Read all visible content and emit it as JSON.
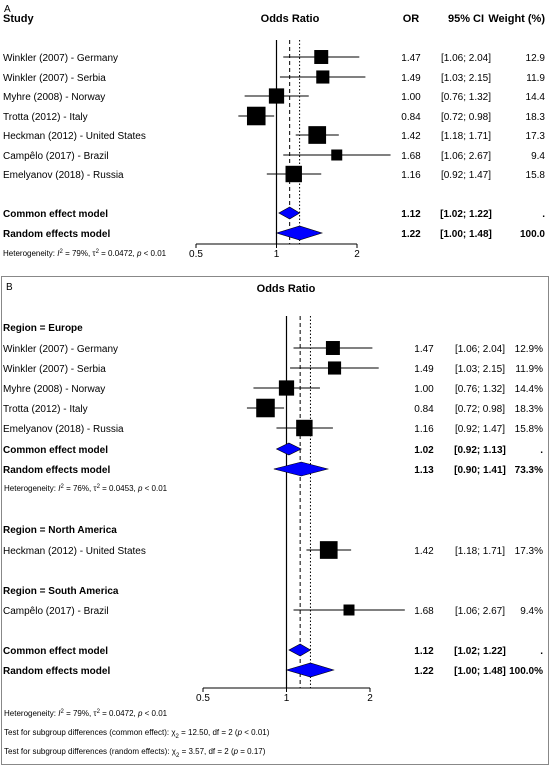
{
  "chart_data": [
    {
      "type": "forest",
      "panel_label": "A",
      "header": {
        "study": "Study",
        "plot": "Odds Ratio",
        "or": "OR",
        "ci": "95% CI",
        "weight": "Weight (%)"
      },
      "x_scale": "log",
      "x_ticks": [
        "0.5",
        "1",
        "2"
      ],
      "x_tick_values": [
        0.5,
        1,
        2
      ],
      "studies": [
        {
          "label": "Winkler (2007) - Germany",
          "or": 1.47,
          "lo": 1.06,
          "hi": 2.04,
          "or_text": "1.47",
          "ci_text": "[1.06; 2.04]",
          "weight_text": "12.9",
          "weight": 12.9
        },
        {
          "label": "Winkler (2007) - Serbia",
          "or": 1.49,
          "lo": 1.03,
          "hi": 2.15,
          "or_text": "1.49",
          "ci_text": "[1.03; 2.15]",
          "weight_text": "11.9",
          "weight": 11.9
        },
        {
          "label": "Myhre (2008) - Norway",
          "or": 1.0,
          "lo": 0.76,
          "hi": 1.32,
          "or_text": "1.00",
          "ci_text": "[0.76; 1.32]",
          "weight_text": "14.4",
          "weight": 14.4
        },
        {
          "label": "Trotta (2012) - Italy",
          "or": 0.84,
          "lo": 0.72,
          "hi": 0.98,
          "or_text": "0.84",
          "ci_text": "[0.72; 0.98]",
          "weight_text": "18.3",
          "weight": 18.3
        },
        {
          "label": "Heckman (2012) - United States",
          "or": 1.42,
          "lo": 1.18,
          "hi": 1.71,
          "or_text": "1.42",
          "ci_text": "[1.18; 1.71]",
          "weight_text": "17.3",
          "weight": 17.3
        },
        {
          "label": "Campêlo (2017) - Brazil",
          "or": 1.68,
          "lo": 1.06,
          "hi": 2.67,
          "or_text": "1.68",
          "ci_text": "[1.06; 2.67]",
          "weight_text": "9.4",
          "weight": 9.4
        },
        {
          "label": "Emelyanov (2018) - Russia",
          "or": 1.16,
          "lo": 0.92,
          "hi": 1.47,
          "or_text": "1.16",
          "ci_text": "[0.92; 1.47]",
          "weight_text": "15.8",
          "weight": 15.8
        }
      ],
      "common": {
        "label": "Common effect model",
        "or": 1.12,
        "lo": 1.02,
        "hi": 1.22,
        "or_text": "1.12",
        "ci_text": "[1.02; 1.22]",
        "weight_text": "."
      },
      "random": {
        "label": "Random effects model",
        "or": 1.22,
        "lo": 1.0,
        "hi": 1.48,
        "or_text": "1.22",
        "ci_text": "[1.00; 1.48]",
        "weight_text": "100.0"
      },
      "heterogeneity": {
        "prefix": "Heterogeneity: ",
        "i2_symbol": "I",
        "i2_value": " = 79%, ",
        "tau2_symbol": "τ",
        "tau2_value": " = 0.0472, ",
        "p_symbol": "p",
        "p_value": " < 0.01"
      }
    },
    {
      "type": "forest",
      "panel_label": "B",
      "header": {
        "plot": "Odds Ratio"
      },
      "x_scale": "log",
      "x_ticks": [
        "0.5",
        "1",
        "2"
      ],
      "x_tick_values": [
        0.5,
        1,
        2
      ],
      "subgroups": [
        {
          "title": "Region = Europe",
          "studies": [
            {
              "label": "Winkler (2007) - Germany",
              "or": 1.47,
              "lo": 1.06,
              "hi": 2.04,
              "or_text": "1.47",
              "ci_text": "[1.06; 2.04]",
              "weight_text": "12.9%",
              "weight": 12.9
            },
            {
              "label": "Winkler (2007) - Serbia",
              "or": 1.49,
              "lo": 1.03,
              "hi": 2.15,
              "or_text": "1.49",
              "ci_text": "[1.03; 2.15]",
              "weight_text": "11.9%",
              "weight": 11.9
            },
            {
              "label": "Myhre (2008) - Norway",
              "or": 1.0,
              "lo": 0.76,
              "hi": 1.32,
              "or_text": "1.00",
              "ci_text": "[0.76; 1.32]",
              "weight_text": "14.4%",
              "weight": 14.4
            },
            {
              "label": "Trotta (2012) - Italy",
              "or": 0.84,
              "lo": 0.72,
              "hi": 0.98,
              "or_text": "0.84",
              "ci_text": "[0.72; 0.98]",
              "weight_text": "18.3%",
              "weight": 18.3
            },
            {
              "label": "Emelyanov (2018) - Russia",
              "or": 1.16,
              "lo": 0.92,
              "hi": 1.47,
              "or_text": "1.16",
              "ci_text": "[0.92; 1.47]",
              "weight_text": "15.8%",
              "weight": 15.8
            }
          ],
          "common": {
            "label": "Common effect model",
            "or": 1.02,
            "lo": 0.92,
            "hi": 1.13,
            "or_text": "1.02",
            "ci_text": "[0.92; 1.13]",
            "weight_text": "."
          },
          "random": {
            "label": "Random effects model",
            "or": 1.13,
            "lo": 0.9,
            "hi": 1.41,
            "or_text": "1.13",
            "ci_text": "[0.90; 1.41]",
            "weight_text": "73.3%"
          },
          "heterogeneity": {
            "prefix": "Heterogeneity: ",
            "i2_symbol": "I",
            "i2_value": " = 76%, ",
            "tau2_symbol": "τ",
            "tau2_value": " = 0.0453, ",
            "p_symbol": "p",
            "p_value": " < 0.01"
          }
        },
        {
          "title": "Region = North America",
          "studies": [
            {
              "label": "Heckman (2012) - United States",
              "or": 1.42,
              "lo": 1.18,
              "hi": 1.71,
              "or_text": "1.42",
              "ci_text": "[1.18; 1.71]",
              "weight_text": "17.3%",
              "weight": 17.3
            }
          ]
        },
        {
          "title": "Region = South America",
          "studies": [
            {
              "label": "Campêlo (2017) - Brazil",
              "or": 1.68,
              "lo": 1.06,
              "hi": 2.67,
              "or_text": "1.68",
              "ci_text": "[1.06; 2.67]",
              "weight_text": "9.4%",
              "weight": 9.4
            }
          ]
        }
      ],
      "common": {
        "label": "Common effect model",
        "or": 1.12,
        "lo": 1.02,
        "hi": 1.22,
        "or_text": "1.12",
        "ci_text": "[1.02; 1.22]",
        "weight_text": "."
      },
      "random": {
        "label": "Random effects model",
        "or": 1.22,
        "lo": 1.0,
        "hi": 1.48,
        "or_text": "1.22",
        "ci_text": "[1.00; 1.48]",
        "weight_text": "100.0%"
      },
      "heterogeneity": {
        "prefix": "Heterogeneity: ",
        "i2_symbol": "I",
        "i2_value": " = 79%, ",
        "tau2_symbol": "τ",
        "tau2_value": " = 0.0472, ",
        "p_symbol": "p",
        "p_value": " < 0.01"
      },
      "subgroup_tests": [
        {
          "prefix": "Test for subgroup differences (common effect): ",
          "chi_symbol": "χ",
          "chi_sub": "2",
          "value": " = 12.50, df = 2 (",
          "p_symbol": "p",
          "p_value": " < 0.01)"
        },
        {
          "prefix": "Test for subgroup differences (random effects): ",
          "chi_symbol": "χ",
          "chi_sub": "2",
          "value": " = 3.57, df = 2 (",
          "p_symbol": "p",
          "p_value": " = 0.17)"
        }
      ]
    }
  ],
  "colors": {
    "diamond_fill": "#0000ff",
    "marker": "#000000",
    "line": "#000000",
    "frame": "#888888"
  }
}
